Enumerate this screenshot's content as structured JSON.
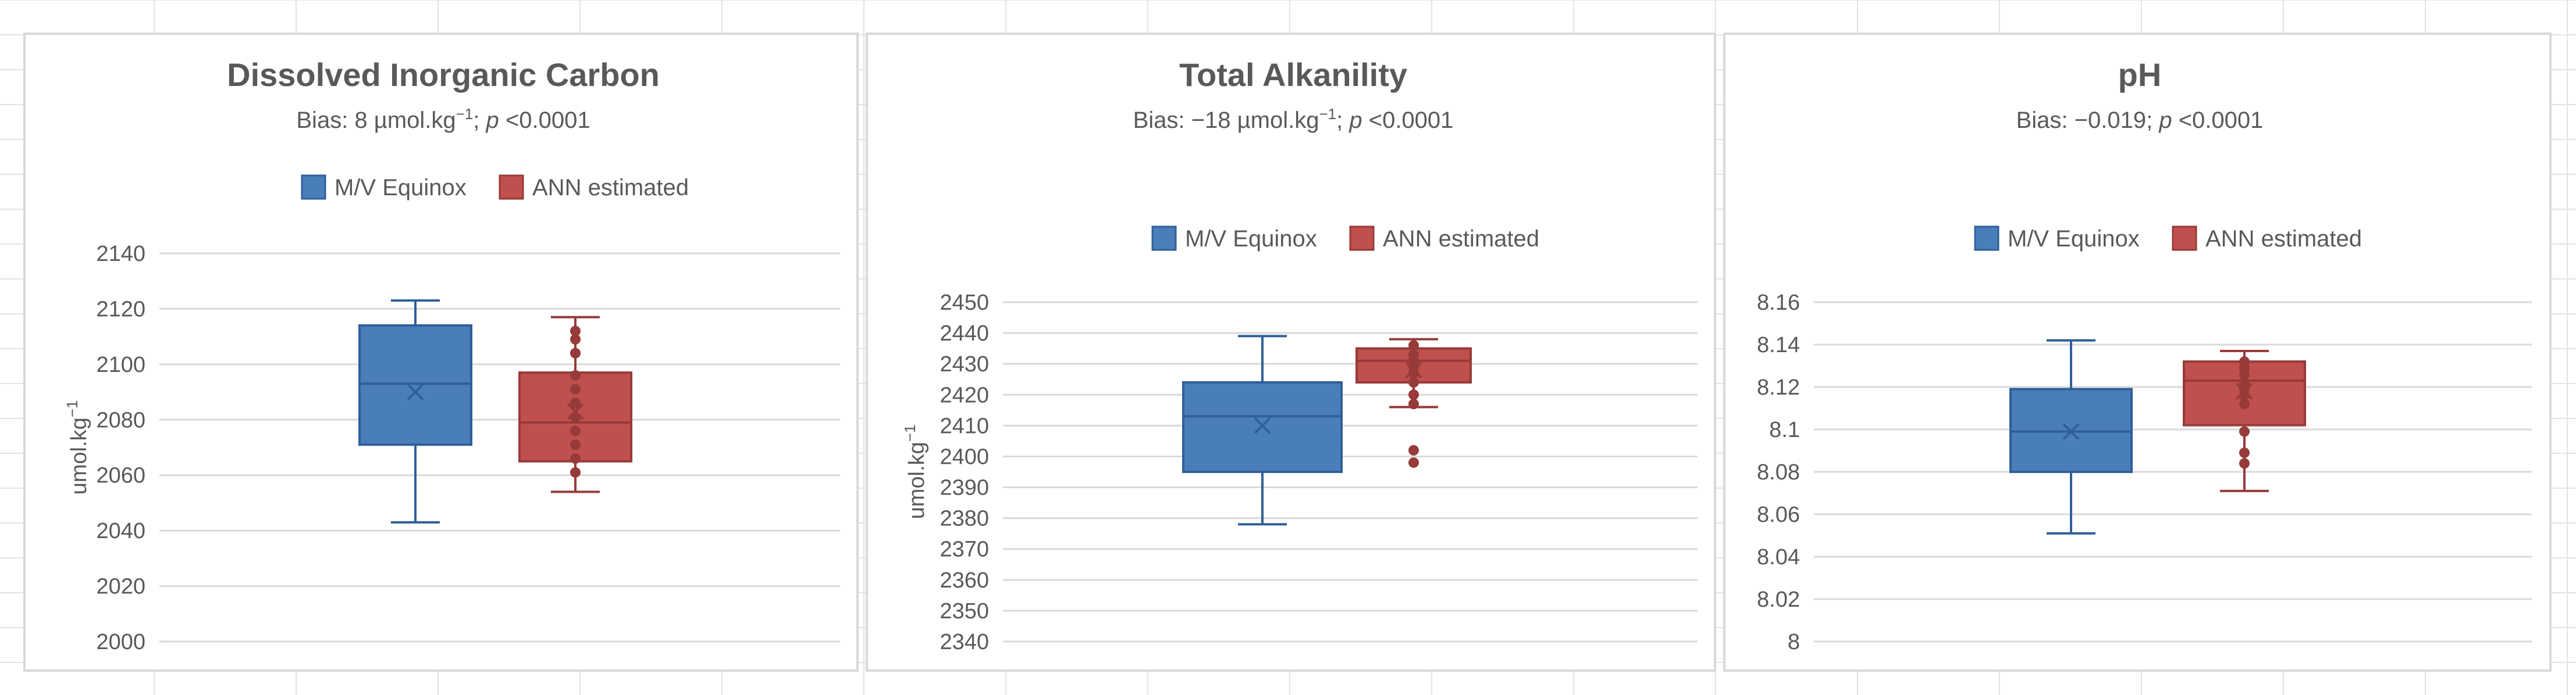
{
  "colors": {
    "series1": "#4a7ebb",
    "series1_edge": "#2f5f99",
    "series2": "#c0504d",
    "series2_edge": "#963b39",
    "gridline": "#d9d9d9",
    "text": "#595959"
  },
  "chart_data": [
    {
      "type": "box",
      "title": "Dissolved Inorganic Carbon",
      "subtitle": {
        "prefix": "Bias: 8 µmol.kg",
        "sup": "−1",
        "mid": "; ",
        "italic": "p",
        "suffix": " <0.0001"
      },
      "ylabel": {
        "text": "umol.kg",
        "sup": "−1"
      },
      "ylim": [
        2000,
        2140
      ],
      "yticks": [
        2000,
        2020,
        2040,
        2060,
        2080,
        2100,
        2120,
        2140
      ],
      "ytick_labels": [
        "2000",
        "2020",
        "2040",
        "2060",
        "2080",
        "2100",
        "2120",
        "2140"
      ],
      "legend": {
        "position": "top",
        "labels": [
          "M/V Equinox",
          "ANN estimated"
        ]
      },
      "grid": true,
      "series": [
        {
          "name": "M/V Equinox",
          "min": 2043,
          "q1": 2071,
          "median": 2093,
          "q3": 2114,
          "max": 2123,
          "mean": 2090,
          "points": []
        },
        {
          "name": "ANN estimated",
          "min": 2054,
          "q1": 2065,
          "median": 2079,
          "q3": 2097,
          "max": 2117,
          "mean": 2083,
          "points": [
            2061,
            2066,
            2071,
            2076,
            2081,
            2086,
            2091,
            2096,
            2104,
            2109,
            2112
          ]
        }
      ]
    },
    {
      "type": "box",
      "title": "Total Alkanility",
      "subtitle": {
        "prefix": "Bias: −18 µmol.kg",
        "sup": "−1",
        "mid": "; ",
        "italic": "p",
        "suffix": " <0.0001"
      },
      "ylabel": {
        "text": "umol.kg",
        "sup": "−1"
      },
      "ylim": [
        2340,
        2450
      ],
      "yticks": [
        2340,
        2350,
        2360,
        2370,
        2380,
        2390,
        2400,
        2410,
        2420,
        2430,
        2440,
        2450
      ],
      "ytick_labels": [
        "2340",
        "2350",
        "2360",
        "2370",
        "2380",
        "2390",
        "2400",
        "2410",
        "2420",
        "2430",
        "2440",
        "2450"
      ],
      "legend": {
        "position": "top",
        "labels": [
          "M/V Equinox",
          "ANN estimated"
        ]
      },
      "grid": true,
      "series": [
        {
          "name": "M/V Equinox",
          "min": 2378,
          "q1": 2395,
          "median": 2413,
          "q3": 2424,
          "max": 2439,
          "mean": 2410,
          "points": []
        },
        {
          "name": "ANN estimated",
          "min": 2416,
          "q1": 2424,
          "median": 2431,
          "q3": 2435,
          "max": 2438,
          "mean": 2428,
          "points": [
            2398,
            2402,
            2417,
            2420,
            2424,
            2427,
            2429,
            2431,
            2433,
            2436
          ]
        }
      ]
    },
    {
      "type": "box",
      "title": "pH",
      "subtitle": {
        "prefix": "Bias: −0.019; ",
        "sup": "",
        "mid": "",
        "italic": "p",
        "suffix": " <0.0001"
      },
      "ylabel": {
        "text": "",
        "sup": ""
      },
      "ylim": [
        8.0,
        8.16
      ],
      "yticks": [
        8.0,
        8.02,
        8.04,
        8.06,
        8.08,
        8.1,
        8.12,
        8.14,
        8.16
      ],
      "ytick_labels": [
        "8",
        "8.02",
        "8.04",
        "8.06",
        "8.08",
        "8.1",
        "8.12",
        "8.14",
        "8.16"
      ],
      "legend": {
        "position": "top",
        "labels": [
          "M/V Equinox",
          "ANN estimated"
        ]
      },
      "grid": true,
      "series": [
        {
          "name": "M/V Equinox",
          "min": 8.051,
          "q1": 8.08,
          "median": 8.099,
          "q3": 8.119,
          "max": 8.142,
          "mean": 8.099,
          "points": []
        },
        {
          "name": "ANN estimated",
          "min": 8.071,
          "q1": 8.102,
          "median": 8.123,
          "q3": 8.132,
          "max": 8.137,
          "mean": 8.118,
          "points": [
            8.084,
            8.089,
            8.099,
            8.112,
            8.116,
            8.119,
            8.122,
            8.126,
            8.129,
            8.132
          ]
        }
      ]
    }
  ]
}
